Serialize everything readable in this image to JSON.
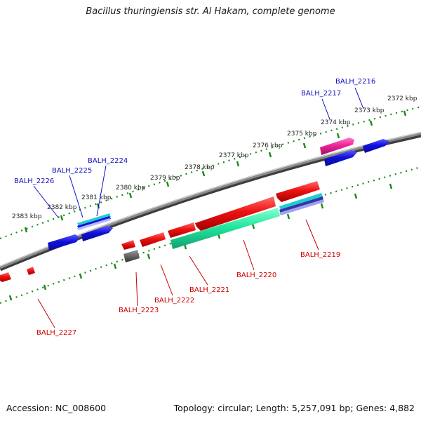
{
  "title": "Bacillus thuringiensis str. Al Hakam, complete genome",
  "footer": {
    "accession": "Accession: NC_008600",
    "summary": "Topology: circular; Length: 5,257,091 bp; Genes: 4,882"
  },
  "colors": {
    "backbone": "#8a8a8a",
    "ticks": "#1a8a1a",
    "tick_label": "#222222",
    "forward_label": "#1010c0",
    "reverse_label": "#cc0000",
    "blue": "#1111dd",
    "red": "#ee1111",
    "green": "#22e8a0",
    "pink": "#ee2299",
    "cyan": "#22cccc",
    "grey": "#666666"
  },
  "ticks": [
    {
      "label": "2372 kbp",
      "pos": 2372
    },
    {
      "label": "2373 kbp",
      "pos": 2373
    },
    {
      "label": "2374 kbp",
      "pos": 2374
    },
    {
      "label": "2375 kbp",
      "pos": 2375
    },
    {
      "label": "2376 kbp",
      "pos": 2376
    },
    {
      "label": "2377 kbp",
      "pos": 2377
    },
    {
      "label": "2378 kbp",
      "pos": 2378
    },
    {
      "label": "2379 kbp",
      "pos": 2379
    },
    {
      "label": "2380 kbp",
      "pos": 2380
    },
    {
      "label": "2381 kbp",
      "pos": 2381
    },
    {
      "label": "2382 kbp",
      "pos": 2382
    },
    {
      "label": "2383 kbp",
      "pos": 2383
    }
  ],
  "genes_forward": [
    {
      "label": "BALH_2216"
    },
    {
      "label": "BALH_2217"
    },
    {
      "label": "BALH_2224"
    },
    {
      "label": "BALH_2225"
    },
    {
      "label": "BALH_2226"
    }
  ],
  "genes_reverse": [
    {
      "label": "BALH_2219"
    },
    {
      "label": "BALH_2220"
    },
    {
      "label": "BALH_2221"
    },
    {
      "label": "BALH_2222"
    },
    {
      "label": "BALH_2223"
    },
    {
      "label": "BALH_2227"
    }
  ]
}
